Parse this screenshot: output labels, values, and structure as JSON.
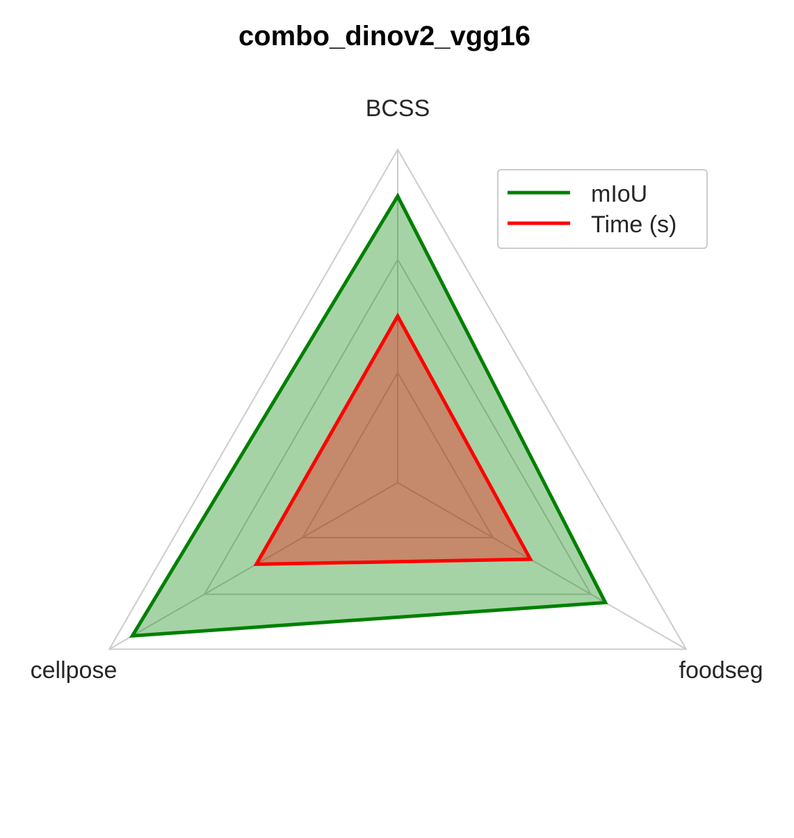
{
  "chart_data": {
    "type": "radar",
    "title": "combo_dinov2_vgg16",
    "axes": [
      "BCSS",
      "cellpose",
      "foodseg"
    ],
    "range": [
      0,
      1
    ],
    "grid_levels": [
      0.33,
      0.67,
      1.0
    ],
    "series": [
      {
        "name": "mIoU",
        "values": [
          0.86,
          0.92,
          0.72
        ],
        "color": "#008000",
        "fill": "#008000",
        "fill_opacity": 0.35
      },
      {
        "name": "Time (s)",
        "values": [
          0.5,
          0.49,
          0.46
        ],
        "color": "#ff0000",
        "fill": "#ff0000",
        "fill_opacity": 0.35
      }
    ],
    "legend_position": "top-right",
    "grid": true
  }
}
